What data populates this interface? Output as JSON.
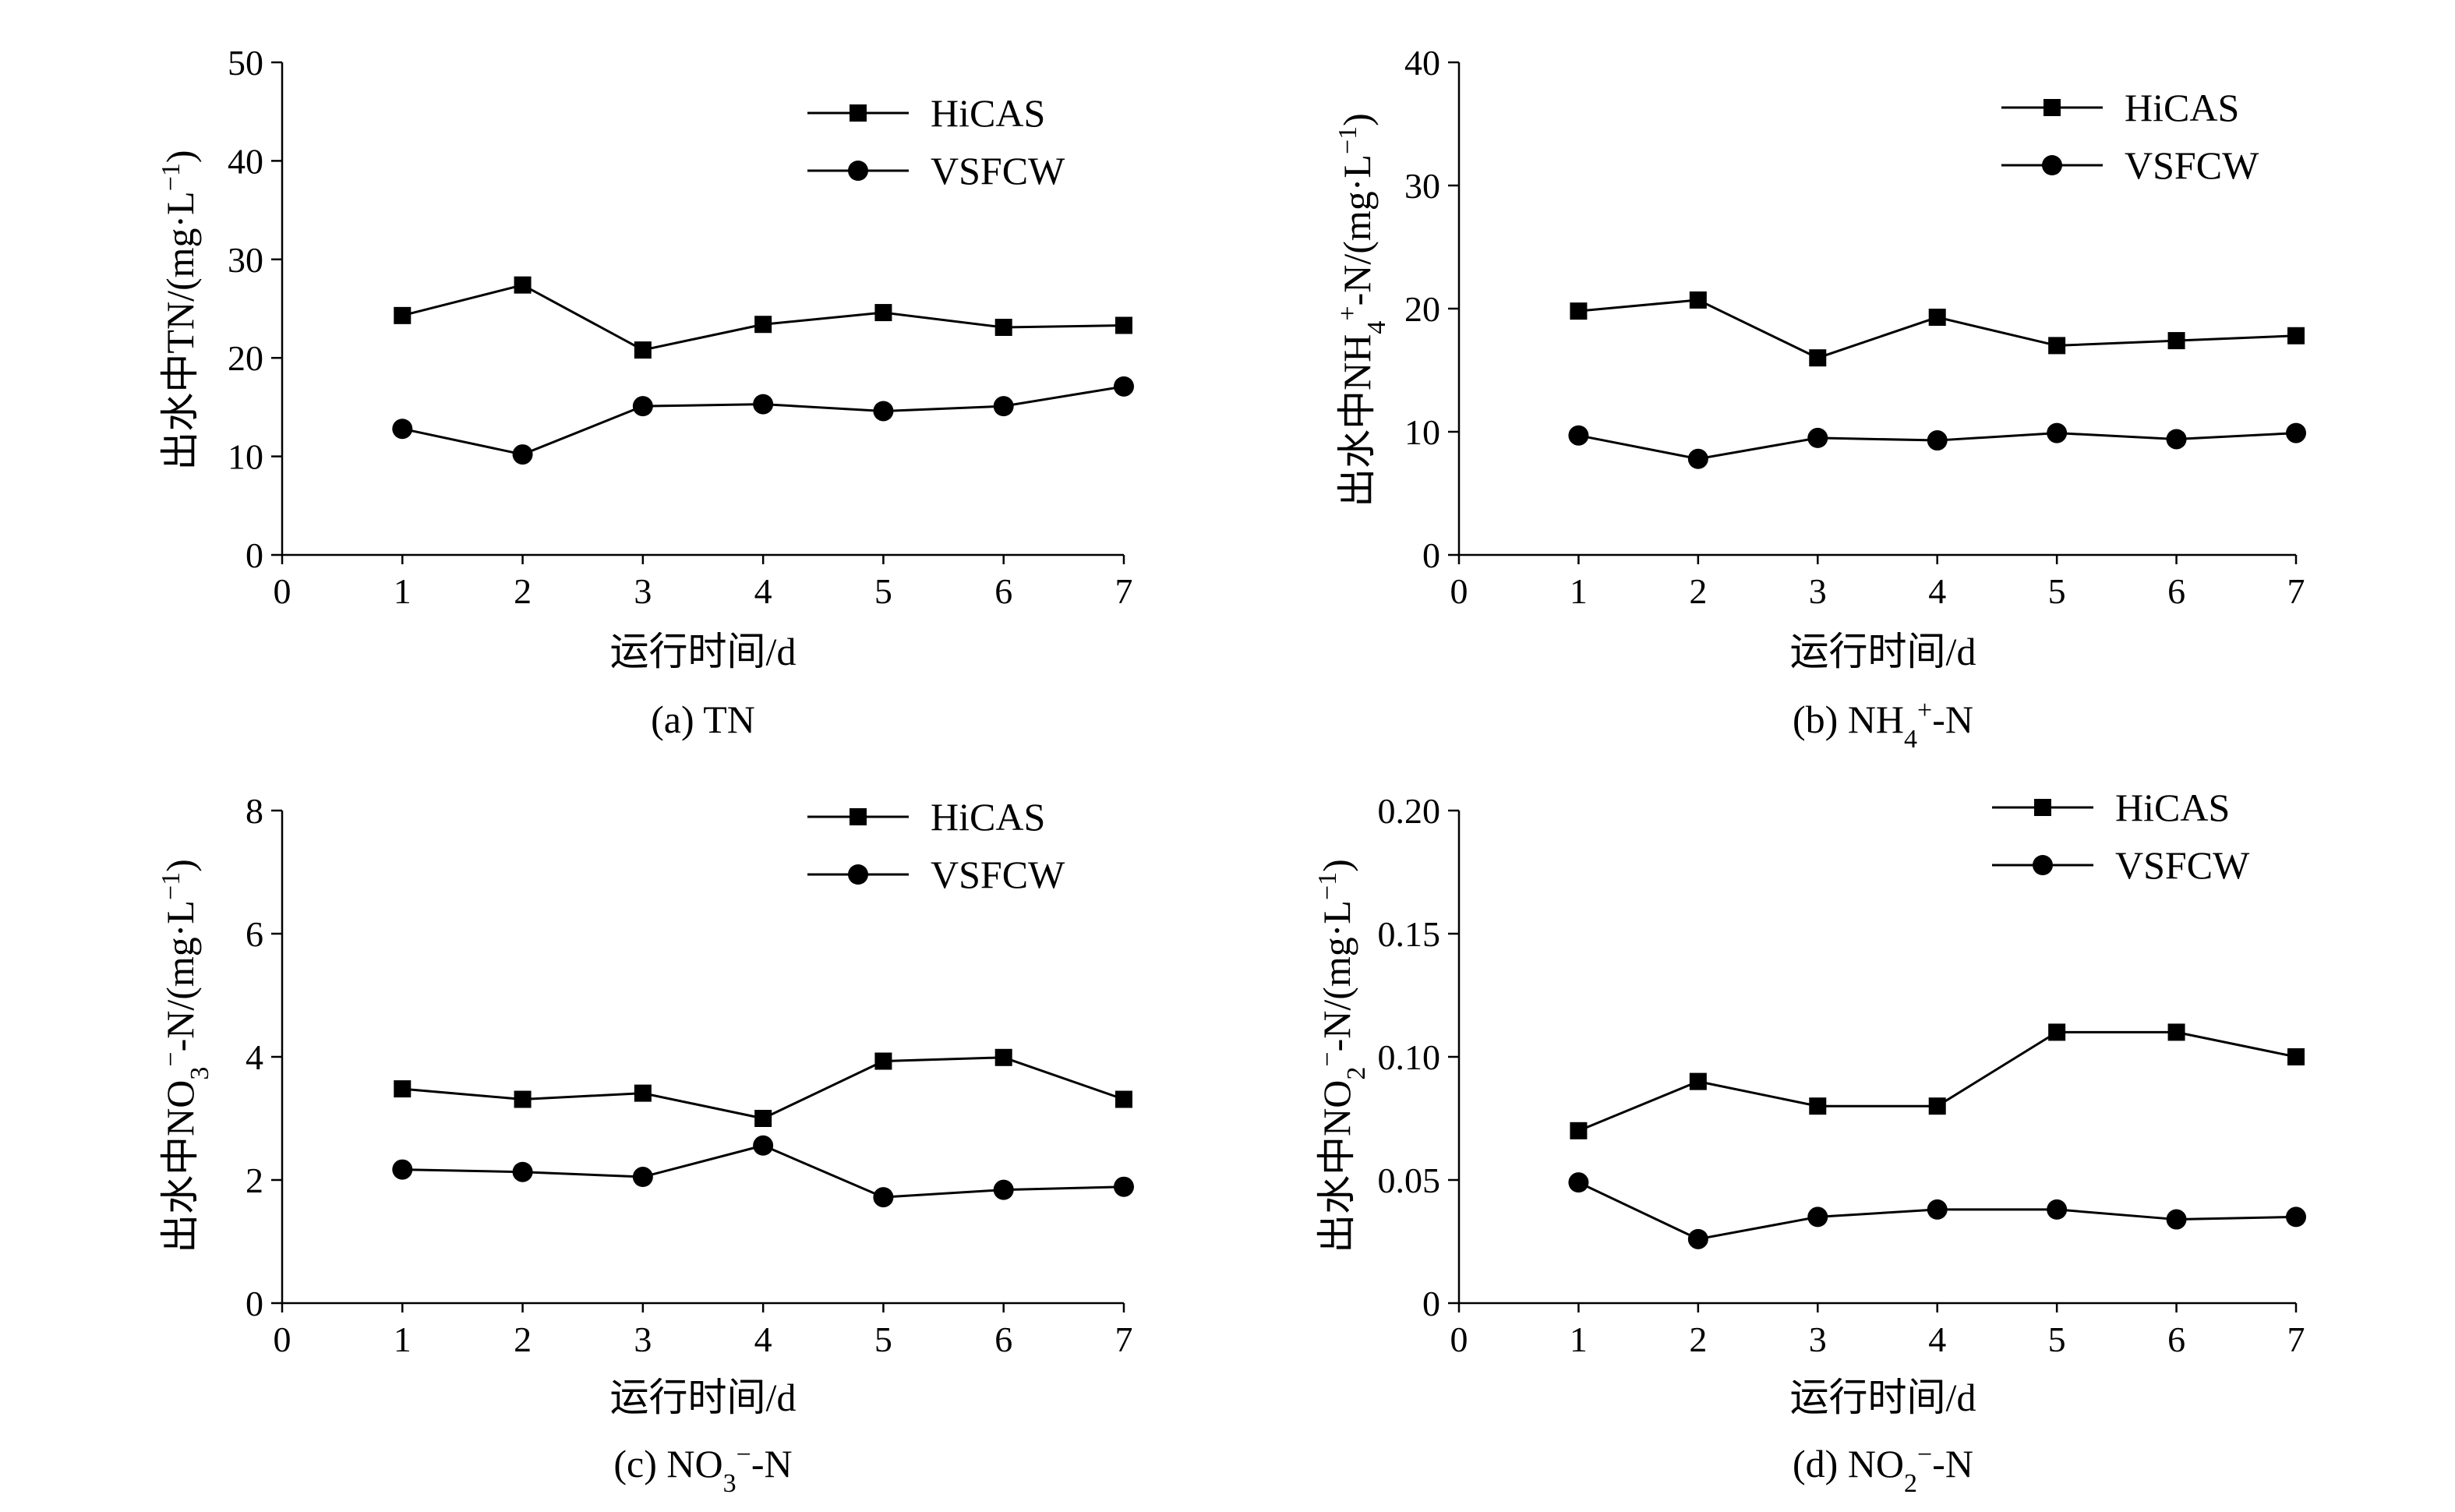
{
  "chart_data": [
    {
      "id": "a",
      "type": "line",
      "caption": "(a) TN",
      "caption_parts": {
        "prefix": "(a) ",
        "main": "TN",
        "sub": "",
        "sup": "",
        "suffix": ""
      },
      "xlabel": "运行时间/d",
      "ylabel": {
        "base": "出水中TN/(mg·L",
        "sup": "−1",
        "end": ")"
      },
      "x_ticks": [
        "0",
        "1",
        "2",
        "3",
        "4",
        "5",
        "6",
        "7"
      ],
      "y_ticks": [
        "0",
        "10",
        "20",
        "30",
        "40",
        "50"
      ],
      "xlim": [
        0,
        7
      ],
      "ylim": [
        0,
        50
      ],
      "x": [
        1,
        2,
        3,
        4,
        5,
        6,
        7
      ],
      "series": [
        {
          "name": "HiCAS",
          "marker": "square",
          "values": [
            24.3,
            27.4,
            20.8,
            23.4,
            24.6,
            23.1,
            23.3
          ]
        },
        {
          "name": "VSFCW",
          "marker": "circle",
          "values": [
            12.8,
            10.2,
            15.1,
            15.3,
            14.6,
            15.1,
            17.1
          ]
        }
      ],
      "legend": "top-right",
      "grid": false
    },
    {
      "id": "b",
      "type": "line",
      "caption": "(b) NH4+-N",
      "caption_parts": {
        "prefix": "(b) ",
        "main": "NH",
        "sub": "4",
        "sup": "+",
        "suffix": "-N"
      },
      "xlabel": "运行时间/d",
      "ylabel": {
        "base": "出水中NH4+-N/(mg·L",
        "sup": "−1",
        "end": ")"
      },
      "x_ticks": [
        "0",
        "1",
        "2",
        "3",
        "4",
        "5",
        "6",
        "7"
      ],
      "y_ticks": [
        "0",
        "10",
        "20",
        "30",
        "40"
      ],
      "xlim": [
        0,
        7
      ],
      "ylim": [
        0,
        40
      ],
      "x": [
        1,
        2,
        3,
        4,
        5,
        6,
        7
      ],
      "series": [
        {
          "name": "HiCAS",
          "marker": "square",
          "values": [
            19.8,
            20.7,
            16.0,
            19.3,
            17.0,
            17.4,
            17.8
          ]
        },
        {
          "name": "VSFCW",
          "marker": "circle",
          "values": [
            9.7,
            7.8,
            9.5,
            9.3,
            9.9,
            9.4,
            9.9
          ]
        }
      ],
      "legend": "top-right",
      "grid": false
    },
    {
      "id": "c",
      "type": "line",
      "caption": "(c) NO3−-N",
      "caption_parts": {
        "prefix": "(c) ",
        "main": "NO",
        "sub": "3",
        "sup": "−",
        "suffix": "-N"
      },
      "xlabel": "运行时间/d",
      "ylabel": {
        "base": "出水中NO3−-N/(mg·L",
        "sup": "−1",
        "end": ")"
      },
      "x_ticks": [
        "0",
        "1",
        "2",
        "3",
        "4",
        "5",
        "6",
        "7"
      ],
      "y_ticks": [
        "0",
        "2",
        "4",
        "6",
        "8"
      ],
      "xlim": [
        0,
        7
      ],
      "ylim": [
        0,
        8
      ],
      "x": [
        1,
        2,
        3,
        4,
        5,
        6,
        7
      ],
      "series": [
        {
          "name": "HiCAS",
          "marker": "square",
          "values": [
            3.48,
            3.31,
            3.41,
            3.0,
            3.93,
            3.99,
            3.31
          ]
        },
        {
          "name": "VSFCW",
          "marker": "circle",
          "values": [
            2.17,
            2.13,
            2.05,
            2.56,
            1.72,
            1.84,
            1.89
          ]
        }
      ],
      "legend": "top-right",
      "grid": false
    },
    {
      "id": "d",
      "type": "line",
      "caption": "(d) NO2−-N",
      "caption_parts": {
        "prefix": "(d) ",
        "main": "NO",
        "sub": "2",
        "sup": "−",
        "suffix": "-N"
      },
      "xlabel": "运行时间/d",
      "ylabel": {
        "base": "出水中NO2−-N/(mg·L",
        "sup": "−1",
        "end": ")"
      },
      "x_ticks": [
        "0",
        "1",
        "2",
        "3",
        "4",
        "5",
        "6",
        "7"
      ],
      "y_ticks": [
        "0",
        "0.05",
        "0.10",
        "0.15",
        "0.20"
      ],
      "xlim": [
        0,
        7
      ],
      "ylim": [
        0,
        0.2
      ],
      "x": [
        1,
        2,
        3,
        4,
        5,
        6,
        7
      ],
      "series": [
        {
          "name": "HiCAS",
          "marker": "square",
          "values": [
            0.07,
            0.09,
            0.08,
            0.08,
            0.11,
            0.11,
            0.1
          ]
        },
        {
          "name": "VSFCW",
          "marker": "circle",
          "values": [
            0.049,
            0.026,
            0.035,
            0.038,
            0.038,
            0.034,
            0.035
          ]
        }
      ],
      "legend": "top-right",
      "grid": false
    }
  ]
}
